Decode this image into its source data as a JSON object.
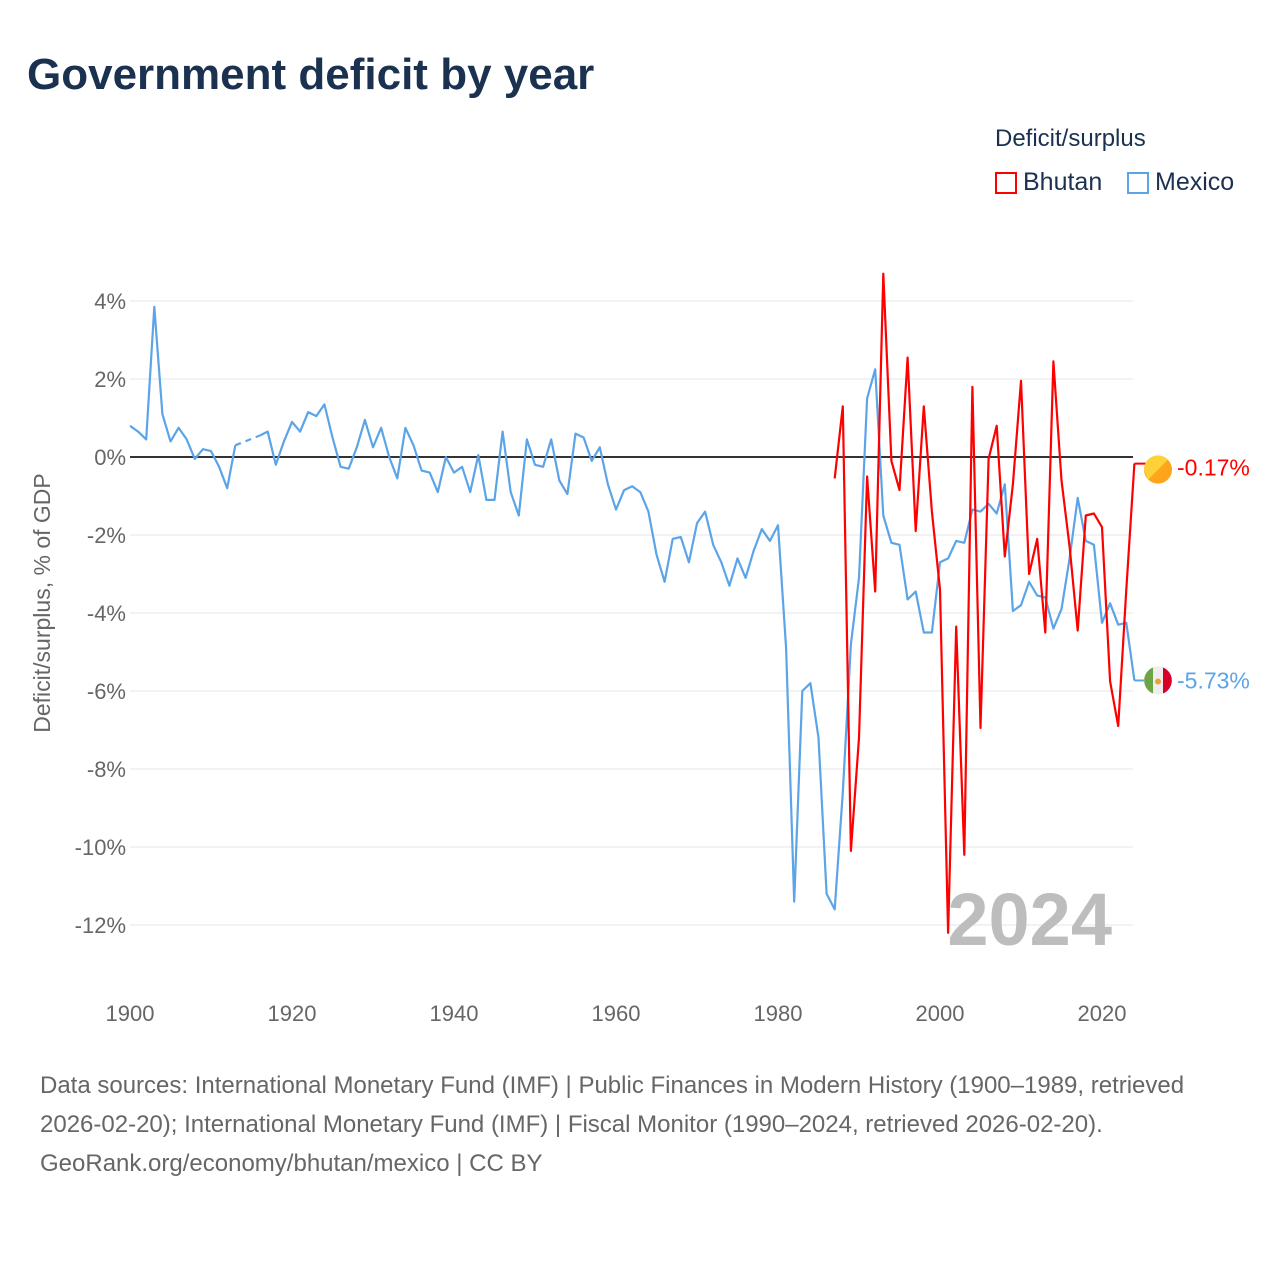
{
  "chart_data": {
    "type": "line",
    "title": "Government deficit by year",
    "ylabel": "Deficit/surplus, % of GDP",
    "xlabel": "",
    "legend_title": "Deficit/surplus",
    "legend_position": "top-right",
    "xlim": [
      1900,
      2024
    ],
    "ylim": [
      -13,
      4.5
    ],
    "x_ticks": [
      "1900",
      "1920",
      "1940",
      "1960",
      "1980",
      "2000",
      "2020"
    ],
    "y_ticks": [
      {
        "v": 4,
        "label": "4%"
      },
      {
        "v": 2,
        "label": "2%"
      },
      {
        "v": 0,
        "label": "0%"
      },
      {
        "v": -2,
        "label": "-2%"
      },
      {
        "v": -4,
        "label": "-4%"
      },
      {
        "v": -6,
        "label": "-6%"
      },
      {
        "v": -8,
        "label": "-8%"
      },
      {
        "v": -10,
        "label": "-10%"
      },
      {
        "v": -12,
        "label": "-12%"
      }
    ],
    "year_label": "2024",
    "series": [
      {
        "name": "Bhutan",
        "color": "#ff0000",
        "end_label": "-0.17%",
        "start": 1987,
        "values": [
          -0.55,
          1.3,
          -10.1,
          -7.2,
          -0.5,
          -3.45,
          4.7,
          -0.1,
          -0.85,
          2.55,
          -1.9,
          1.3,
          -1.4,
          -3.4,
          -12.2,
          -4.35,
          -10.2,
          1.8,
          -6.95,
          -0.05,
          0.8,
          -2.55,
          -0.7,
          1.95,
          -3.0,
          -2.1,
          -4.5,
          2.45,
          -0.6,
          -2.3,
          -4.45,
          -1.5,
          -1.45,
          -1.8,
          -5.75,
          -6.9,
          -3.4,
          -0.17
        ]
      },
      {
        "name": "Mexico",
        "color": "#5ba4e8",
        "end_label": "-5.73%",
        "start": 1900,
        "values": [
          0.8,
          0.65,
          0.45,
          3.85,
          1.1,
          0.4,
          0.75,
          0.45,
          -0.05,
          0.2,
          0.15,
          -0.25,
          -0.8,
          0.3,
          null,
          null,
          0.55,
          0.65,
          -0.2,
          0.4,
          0.9,
          0.65,
          1.15,
          1.05,
          1.35,
          0.5,
          -0.25,
          -0.3,
          0.25,
          0.95,
          0.25,
          0.75,
          0.0,
          -0.55,
          0.75,
          0.3,
          -0.35,
          -0.4,
          -0.9,
          0.0,
          -0.4,
          -0.25,
          -0.9,
          0.05,
          -1.1,
          -1.1,
          0.65,
          -0.9,
          -1.5,
          0.45,
          -0.2,
          -0.25,
          0.45,
          -0.6,
          -0.95,
          0.6,
          0.5,
          -0.1,
          0.25,
          -0.7,
          -1.35,
          -0.85,
          -0.75,
          -0.9,
          -1.4,
          -2.5,
          -3.2,
          -2.1,
          -2.05,
          -2.7,
          -1.7,
          -1.4,
          -2.25,
          -2.7,
          -3.3,
          -2.6,
          -3.1,
          -2.4,
          -1.85,
          -2.15,
          -1.75,
          -4.9,
          -11.4,
          -6.0,
          -5.8,
          -7.2,
          -11.2,
          -11.6,
          -8.6,
          -4.8,
          -3.1,
          1.5,
          2.25,
          -1.5,
          -2.2,
          -2.25,
          -3.65,
          -3.45,
          -4.5,
          -4.5,
          -2.7,
          -2.6,
          -2.15,
          -2.2,
          -1.35,
          -1.4,
          -1.2,
          -1.45,
          -0.7,
          -3.95,
          -3.8,
          -3.2,
          -3.55,
          -3.6,
          -4.4,
          -3.9,
          -2.6,
          -1.05,
          -2.15,
          -2.25,
          -4.25,
          -3.75,
          -4.3,
          -4.25,
          -5.73
        ]
      }
    ]
  },
  "sources": "Data sources: International Monetary Fund (IMF) | Public Finances in Modern History (1900–1989, retrieved 2026-02-20); International Monetary Fund (IMF) | Fiscal Monitor (1990–2024, retrieved 2026-02-20).",
  "credit": "GeoRank.org/economy/bhutan/mexico | CC BY"
}
